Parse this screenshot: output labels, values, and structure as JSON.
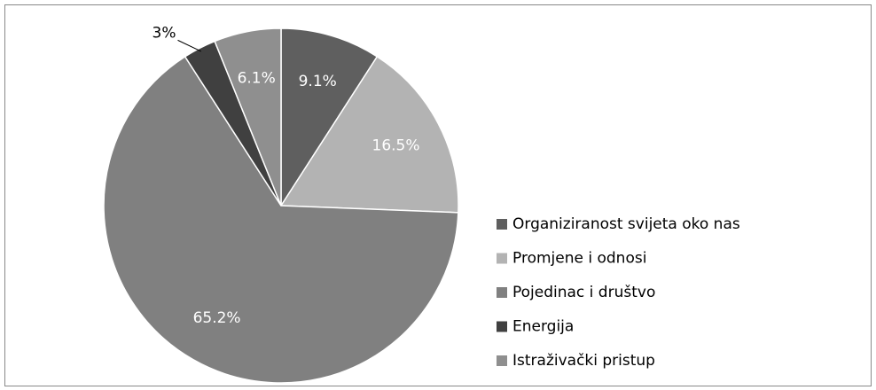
{
  "chart_data": {
    "type": "pie",
    "categories": [
      "Organiziranost svijeta oko nas",
      "Promjene i odnosi",
      "Pojedinac i društvo",
      "Energija",
      "Istraživački pristup"
    ],
    "values": [
      9.1,
      16.5,
      65.2,
      3,
      6.1
    ],
    "value_labels": [
      "9.1%",
      "16.5%",
      "65.2%",
      "3%",
      "6.1%"
    ],
    "colors": [
      "#5f5f5f",
      "#b3b3b3",
      "#808080",
      "#404040",
      "#8f8f8f"
    ],
    "legend": "right"
  }
}
